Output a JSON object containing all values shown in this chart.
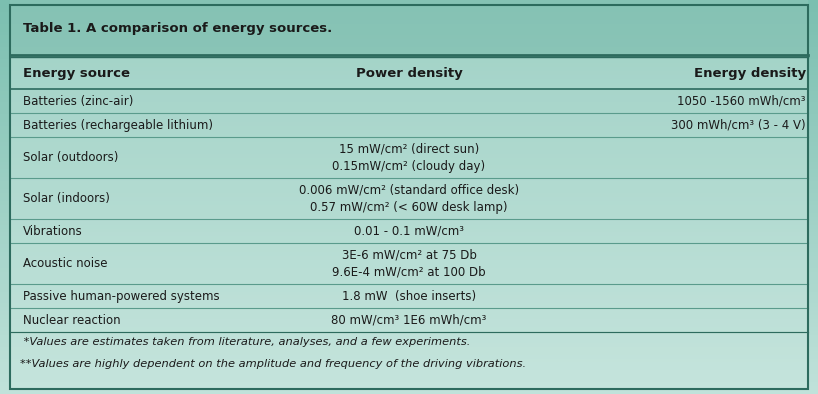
{
  "title": "Table 1. A comparison of energy sources.",
  "col_headers": [
    "Energy source",
    "Power density",
    "Energy density"
  ],
  "rows": [
    {
      "source": "Batteries (zinc-air)",
      "power": [
        "",
        ""
      ],
      "energy": "1050 -1560 mWh/cm³"
    },
    {
      "source": "Batteries (rechargeable lithium)",
      "power": [
        "",
        ""
      ],
      "energy": "300 mWh/cm³ (3 - 4 V)"
    },
    {
      "source": "Solar (outdoors)",
      "power": [
        "15 mW/cm² (direct sun)",
        "0.15mW/cm² (cloudy day)"
      ],
      "energy": ""
    },
    {
      "source": "Solar (indoors)",
      "power": [
        "0.006 mW/cm² (standard office desk)",
        "0.57 mW/cm² (< 60W desk lamp)"
      ],
      "energy": ""
    },
    {
      "source": "Vibrations",
      "power": [
        "0.01 - 0.1 mW/cm³",
        ""
      ],
      "energy": ""
    },
    {
      "source": "Acoustic noise",
      "power": [
        "3E-6 mW/cm² at 75 Db",
        "9.6E-4 mW/cm² at 100 Db"
      ],
      "energy": ""
    },
    {
      "source": "Passive human-powered systems",
      "power": [
        "1.8 mW  (shoe inserts)",
        ""
      ],
      "energy": ""
    },
    {
      "source": "Nuclear reaction",
      "power": [
        "80 mW/cm³ 1E6 mWh/cm³",
        ""
      ],
      "energy": ""
    }
  ],
  "footnotes": [
    " *Values are estimates taken from literature, analyses, and a few experiments.",
    "**Values are highly dependent on the amplitude and frequency of the driving vibrations."
  ],
  "bg_color_top": "#7bbfb0",
  "bg_color_bot": "#b8ddd5",
  "title_bg": "#8ec5b8",
  "table_bg": "#cce8e0",
  "border_dark": "#2d6b5e",
  "border_light": "#5a9b8c",
  "text_color": "#1a1a1a",
  "title_fontsize": 9.5,
  "header_fontsize": 9.5,
  "cell_fontsize": 8.5,
  "footnote_fontsize": 8.2,
  "two_line_rows": [
    2,
    3,
    5
  ],
  "row_heights_rel": [
    1.0,
    1.0,
    1.7,
    1.7,
    1.0,
    1.7,
    1.0,
    1.0
  ]
}
